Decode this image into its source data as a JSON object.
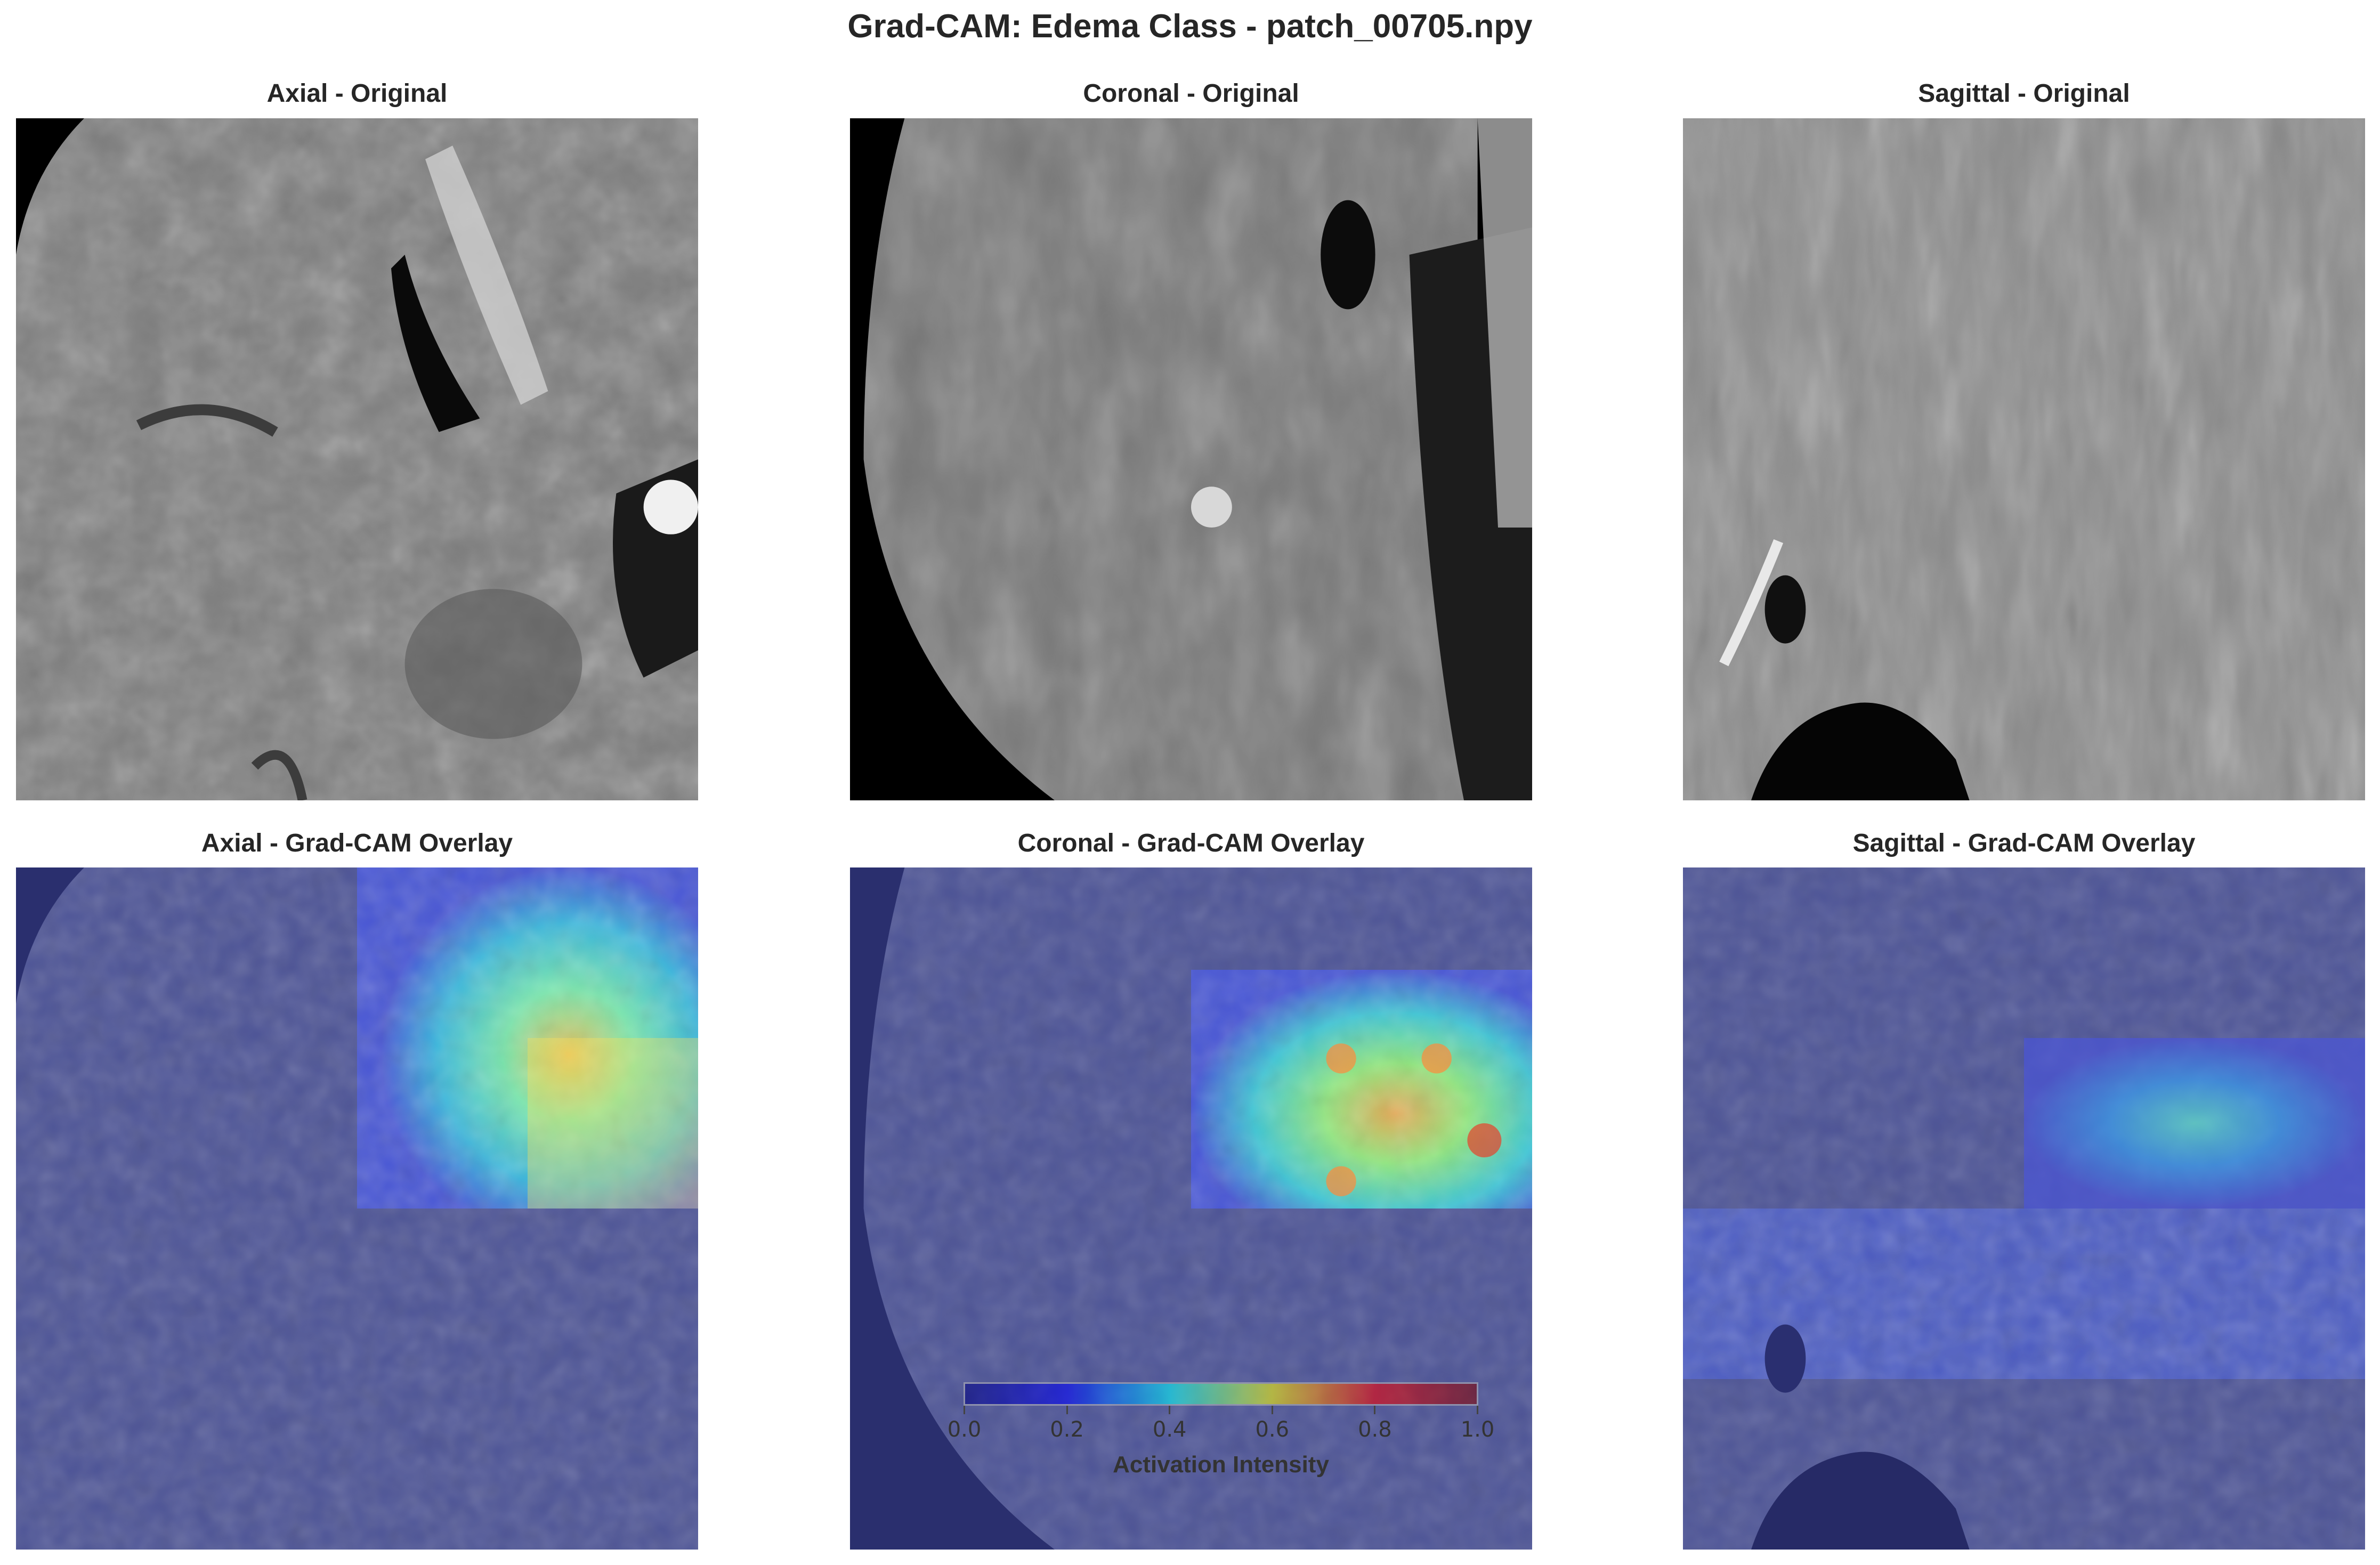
{
  "figure": {
    "title": "Grad-CAM: Edema Class - patch_00705.npy"
  },
  "panels": {
    "axial_original": {
      "title": "Axial - Original"
    },
    "coronal_original": {
      "title": "Coronal - Original"
    },
    "sagittal_original": {
      "title": "Sagittal - Original"
    },
    "axial_overlay": {
      "title": "Axial - Grad-CAM Overlay"
    },
    "coronal_overlay": {
      "title": "Coronal - Grad-CAM Overlay"
    },
    "sagittal_overlay": {
      "title": "Sagittal - Grad-CAM Overlay"
    }
  },
  "colorbar": {
    "label": "Activation Intensity",
    "colormap": "jet",
    "range": [
      0.0,
      1.0
    ],
    "ticks": [
      "0.0",
      "0.2",
      "0.4",
      "0.6",
      "0.8",
      "1.0"
    ],
    "colors": [
      "#00007f",
      "#0000ff",
      "#00ffff",
      "#ffff00",
      "#ff0000",
      "#7f0000"
    ]
  }
}
